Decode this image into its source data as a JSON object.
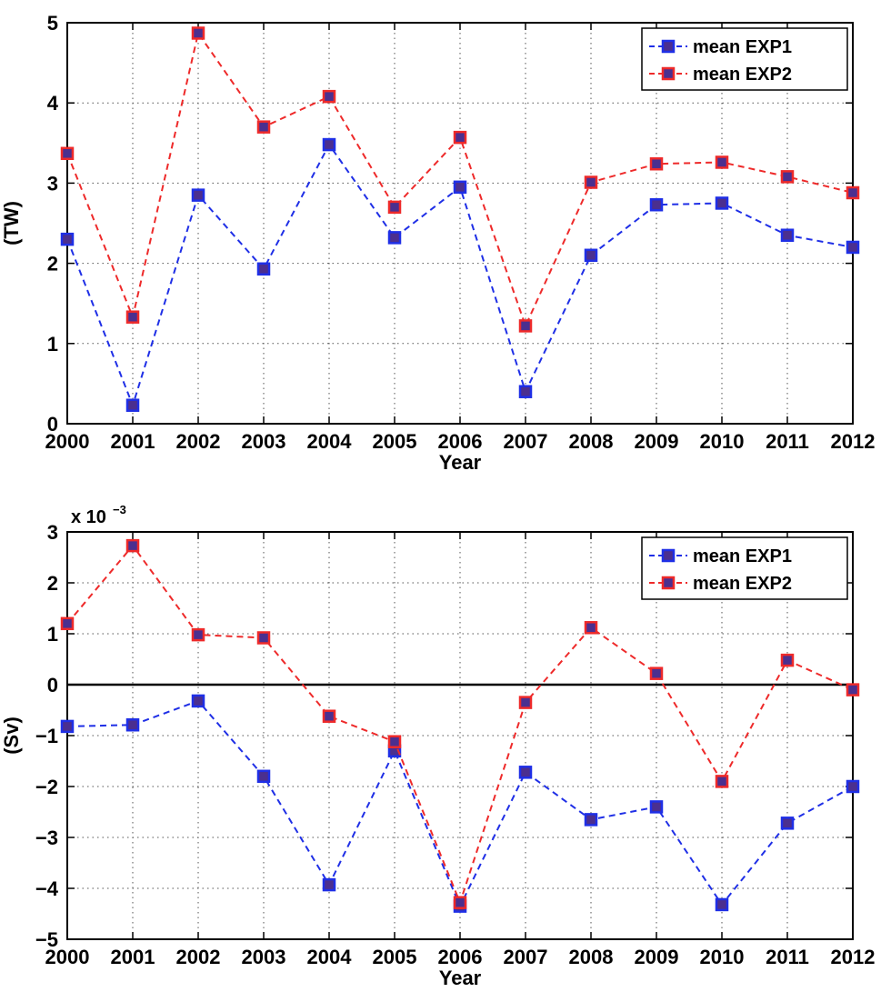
{
  "colors": {
    "exp1": "#1f2fe6",
    "exp2": "#ee2a2a",
    "marker_fill": "#4b2f8f",
    "grid": "#555555"
  },
  "chart_data": [
    {
      "type": "line",
      "ylabel": "(TW)",
      "xlabel": "Year",
      "x": [
        2000,
        2001,
        2002,
        2003,
        2004,
        2005,
        2006,
        2007,
        2008,
        2009,
        2010,
        2011,
        2012
      ],
      "xlim": [
        2000,
        2012
      ],
      "ylim": [
        0,
        5
      ],
      "yticks": [
        0,
        1,
        2,
        3,
        4,
        5
      ],
      "grid": true,
      "legend_position": "top-right",
      "exponent_label": "",
      "series": [
        {
          "name": "mean EXP1",
          "color": "#1f2fe6",
          "style": "dashed",
          "marker": "square",
          "values": [
            2.3,
            0.23,
            2.85,
            1.93,
            3.48,
            2.32,
            2.95,
            0.4,
            2.1,
            2.73,
            2.75,
            2.35,
            2.2
          ]
        },
        {
          "name": "mean EXP2",
          "color": "#ee2a2a",
          "style": "dashed",
          "marker": "square",
          "values": [
            3.37,
            1.33,
            4.87,
            3.7,
            4.08,
            2.7,
            3.57,
            1.22,
            3.01,
            3.24,
            3.26,
            3.08,
            2.88
          ]
        }
      ]
    },
    {
      "type": "line",
      "ylabel": "(Sv)",
      "xlabel": "Year",
      "x": [
        2000,
        2001,
        2002,
        2003,
        2004,
        2005,
        2006,
        2007,
        2008,
        2009,
        2010,
        2011,
        2012
      ],
      "xlim": [
        2000,
        2012
      ],
      "ylim": [
        -5,
        3
      ],
      "yticks": [
        -5,
        -4,
        -3,
        -2,
        -1,
        0,
        1,
        2,
        3
      ],
      "grid": true,
      "zero_line": true,
      "legend_position": "top-right",
      "exponent_label": "x 10",
      "exponent_power": "−3",
      "series": [
        {
          "name": "mean EXP1",
          "color": "#1f2fe6",
          "style": "dashed",
          "marker": "square",
          "values": [
            -0.82,
            -0.79,
            -0.32,
            -1.8,
            -3.93,
            -1.3,
            -4.35,
            -1.72,
            -2.65,
            -2.4,
            -4.32,
            -2.72,
            -2.0
          ]
        },
        {
          "name": "mean EXP2",
          "color": "#ee2a2a",
          "style": "dashed",
          "marker": "square",
          "values": [
            1.2,
            2.73,
            0.98,
            0.92,
            -0.62,
            -1.12,
            -4.28,
            -0.35,
            1.12,
            0.22,
            -1.9,
            0.48,
            -0.1
          ]
        }
      ]
    }
  ]
}
